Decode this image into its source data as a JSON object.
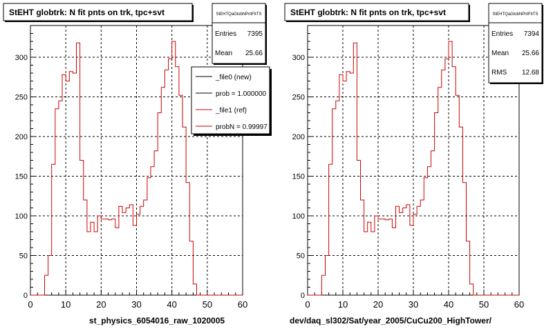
{
  "chart_data": [
    {
      "type": "step",
      "title": "StEHT globtrk: N fit pnts on trk, tpc+svt",
      "xlabel": "st_physics_6054016_raw_1020005",
      "xlim": [
        0,
        60
      ],
      "ylim": [
        0,
        340
      ],
      "x_ticks": [
        0,
        10,
        20,
        30,
        40,
        50,
        60
      ],
      "y_ticks": [
        0,
        50,
        100,
        150,
        200,
        250,
        300
      ],
      "grid": true,
      "stats": {
        "name": "StEHTQaGlobNPntFitTS",
        "entries_label": "Entries",
        "entries": "7395",
        "mean_label": "Mean",
        "mean": "25.66"
      },
      "legend": {
        "placement": "top-right",
        "entries": [
          "_file0 (new)",
          "prob = 1.000000",
          "_file1 (ref)",
          "probN = 0.99997"
        ],
        "colors": [
          "#000000",
          "#000000",
          "#cc0000",
          "#cc0000"
        ]
      },
      "series": [
        {
          "color": "#cc0000",
          "bin_width": 1,
          "x_start": 0,
          "values": [
            0,
            0,
            0,
            0,
            25,
            50,
            165,
            235,
            245,
            278,
            270,
            282,
            280,
            318,
            170,
            120,
            80,
            92,
            80,
            100,
            96,
            96,
            95,
            96,
            85,
            112,
            104,
            110,
            114,
            88,
            102,
            112,
            120,
            148,
            162,
            182,
            230,
            262,
            284,
            298,
            320,
            288,
            252,
            212,
            142,
            68,
            14,
            0,
            0,
            0,
            0,
            0,
            0,
            0,
            0,
            0,
            0,
            0,
            0,
            0
          ]
        }
      ]
    },
    {
      "type": "step",
      "title": "StEHT globtrk: N fit pnts on trk, tpc+svt",
      "xlabel": "dev/daq_sl302/Sat/year_2005/CuCu200_HighTower/",
      "xlim": [
        0,
        60
      ],
      "ylim": [
        0,
        340
      ],
      "x_ticks": [
        0,
        10,
        20,
        30,
        40,
        50,
        60
      ],
      "y_ticks": [
        0,
        50,
        100,
        150,
        200,
        250,
        300
      ],
      "grid": true,
      "stats": {
        "name": "StEHTQaGlobNPntFitTS",
        "entries_label": "Entries",
        "entries": "7394",
        "mean_label": "Mean",
        "mean": "25.66",
        "rms_label": "RMS",
        "rms": "12.68"
      },
      "series": [
        {
          "color": "#cc0000",
          "bin_width": 1,
          "x_start": 0,
          "values": [
            0,
            0,
            0,
            0,
            25,
            50,
            165,
            235,
            245,
            278,
            270,
            282,
            280,
            318,
            170,
            120,
            80,
            92,
            80,
            100,
            96,
            96,
            95,
            96,
            85,
            112,
            104,
            110,
            114,
            88,
            102,
            112,
            120,
            148,
            162,
            182,
            230,
            262,
            284,
            298,
            320,
            288,
            252,
            212,
            142,
            68,
            14,
            0,
            0,
            0,
            0,
            0,
            0,
            0,
            0,
            0,
            0,
            0,
            0,
            0
          ]
        }
      ]
    }
  ]
}
